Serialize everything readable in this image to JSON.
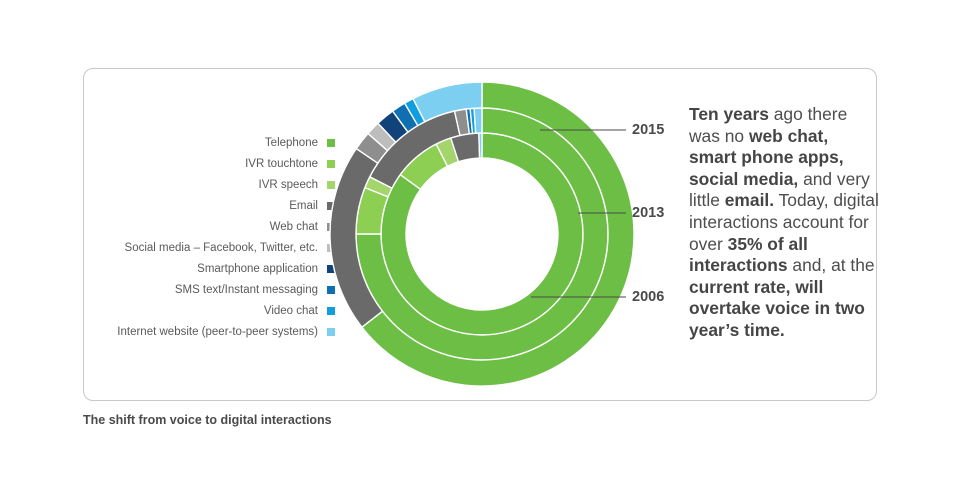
{
  "chart_data": {
    "type": "pie",
    "subtype": "multi-ring donut",
    "categories": [
      "Telephone",
      "IVR touchtone",
      "IVR speech",
      "Email",
      "Web chat",
      "Social media – Facebook, Twitter, etc.",
      "Smartphone application",
      "SMS text/Instant messaging",
      "Video chat",
      "Internet website (peer-to-peer systems)"
    ],
    "colors": [
      "#6cbf44",
      "#8ccf52",
      "#a3d56c",
      "#6a6a6a",
      "#8e8e8e",
      "#bdbdbd",
      "#12427a",
      "#0f6fb0",
      "#0f9ee0",
      "#7dcff2"
    ],
    "series": [
      {
        "name": "2006",
        "values": [
          85.0,
          7.5,
          2.5,
          4.5,
          0,
          0,
          0,
          0,
          0,
          0.5
        ]
      },
      {
        "name": "2013",
        "values": [
          75.0,
          6.0,
          1.5,
          14.0,
          1.5,
          0,
          0,
          0.5,
          0.5,
          1.0
        ]
      },
      {
        "name": "2015",
        "values": [
          64.5,
          0,
          0,
          20.0,
          2.0,
          1.5,
          2.0,
          1.5,
          1.0,
          7.5
        ]
      }
    ],
    "legend_position": "left"
  },
  "ring_labels": [
    "2015",
    "2013",
    "2006"
  ],
  "paragraph": [
    {
      "text": "Ten years",
      "bold": true
    },
    {
      "text": " ago there was no ",
      "bold": false
    },
    {
      "text": "web chat, smart phone apps, social media,",
      "bold": true
    },
    {
      "text": " and very little ",
      "bold": false
    },
    {
      "text": "email.",
      "bold": true
    },
    {
      "text": " Today, digital interactions account for over ",
      "bold": false
    },
    {
      "text": "35% of all interactions",
      "bold": true
    },
    {
      "text": " and, at the ",
      "bold": false
    },
    {
      "text": "current rate, will overtake voice in two year’s time.",
      "bold": true
    }
  ],
  "caption": "The shift from voice to digital interactions"
}
